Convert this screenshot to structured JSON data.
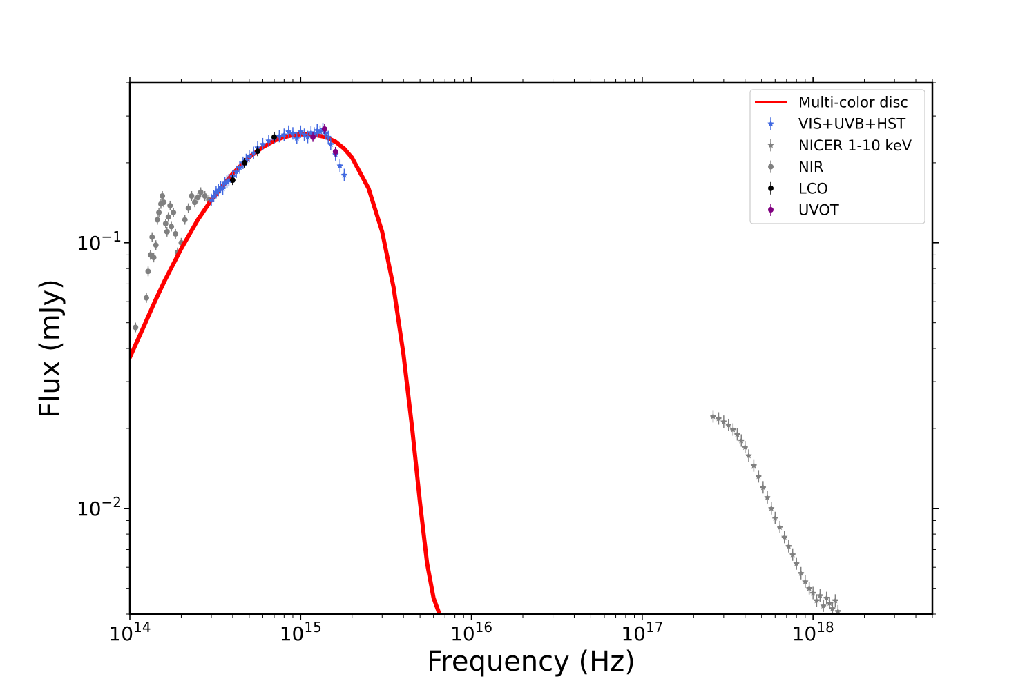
{
  "chart_data": {
    "type": "scatter",
    "title": "",
    "xlabel": "Frequency (Hz)",
    "ylabel": "Flux (mJy)",
    "xscale": "log",
    "yscale": "log",
    "xlim": [
      100000000000000.0,
      5e+18
    ],
    "ylim": [
      0.004,
      0.4
    ],
    "grid": false,
    "legend_position": "top-right",
    "x_ticks": [
      {
        "base": "10",
        "exp": "14",
        "value": 100000000000000.0
      },
      {
        "base": "10",
        "exp": "15",
        "value": 1000000000000000.0
      },
      {
        "base": "10",
        "exp": "16",
        "value": 1e+16
      },
      {
        "base": "10",
        "exp": "17",
        "value": 1e+17
      },
      {
        "base": "10",
        "exp": "18",
        "value": 1e+18
      }
    ],
    "y_ticks": [
      {
        "base": "10",
        "exp": "−1",
        "value": 0.1
      },
      {
        "base": "10",
        "exp": "−2",
        "value": 0.01
      }
    ],
    "series": [
      {
        "name": "Multi-color disc",
        "kind": "line",
        "color": "#ff0000",
        "x": [
          100000000000000.0,
          120000000000000.0,
          140000000000000.0,
          160000000000000.0,
          200000000000000.0,
          250000000000000.0,
          300000000000000.0,
          400000000000000.0,
          500000000000000.0,
          600000000000000.0,
          700000000000000.0,
          800000000000000.0,
          900000000000000.0,
          1000000000000000.0,
          1200000000000000.0,
          1400000000000000.0,
          1600000000000000.0,
          1800000000000000.0,
          2000000000000000.0,
          2500000000000000.0,
          3000000000000000.0,
          3500000000000000.0,
          4000000000000000.0,
          4500000000000000.0,
          5000000000000000.0,
          5500000000000000.0,
          6000000000000000.0,
          6500000000000000.0
        ],
        "y": [
          0.037,
          0.048,
          0.06,
          0.072,
          0.095,
          0.122,
          0.145,
          0.182,
          0.21,
          0.229,
          0.242,
          0.25,
          0.254,
          0.256,
          0.255,
          0.25,
          0.24,
          0.226,
          0.209,
          0.16,
          0.11,
          0.068,
          0.038,
          0.02,
          0.0105,
          0.0062,
          0.0046,
          0.004
        ]
      },
      {
        "name": "VIS+UVB+HST",
        "kind": "errorbar",
        "marker": "star",
        "color": "#4169e1",
        "x": [
          300000000000000.0,
          310000000000000.0,
          320000000000000.0,
          330000000000000.0,
          340000000000000.0,
          350000000000000.0,
          360000000000000.0,
          370000000000000.0,
          380000000000000.0,
          400000000000000.0,
          420000000000000.0,
          440000000000000.0,
          460000000000000.0,
          480000000000000.0,
          500000000000000.0,
          530000000000000.0,
          560000000000000.0,
          600000000000000.0,
          650000000000000.0,
          700000000000000.0,
          750000000000000.0,
          800000000000000.0,
          850000000000000.0,
          900000000000000.0,
          950000000000000.0,
          1000000000000000.0,
          1050000000000000.0,
          1100000000000000.0,
          1150000000000000.0,
          1200000000000000.0,
          1250000000000000.0,
          1300000000000000.0,
          1350000000000000.0,
          1400000000000000.0,
          1450000000000000.0,
          1500000000000000.0,
          1600000000000000.0,
          1700000000000000.0,
          1800000000000000.0
        ],
        "y": [
          0.145,
          0.15,
          0.155,
          0.158,
          0.162,
          0.16,
          0.168,
          0.17,
          0.172,
          0.178,
          0.185,
          0.192,
          0.2,
          0.205,
          0.212,
          0.218,
          0.228,
          0.235,
          0.242,
          0.248,
          0.252,
          0.255,
          0.262,
          0.258,
          0.248,
          0.262,
          0.255,
          0.25,
          0.26,
          0.258,
          0.265,
          0.262,
          0.268,
          0.258,
          0.25,
          0.235,
          0.215,
          0.195,
          0.18
        ]
      },
      {
        "name": "NICER 1-10 keV",
        "kind": "errorbar",
        "marker": "star",
        "color": "#808080",
        "x": [
          2.6e+17,
          2.8e+17,
          3e+17,
          3.2e+17,
          3.4e+17,
          3.6e+17,
          3.8e+17,
          4e+17,
          4.2e+17,
          4.5e+17,
          4.8e+17,
          5.1e+17,
          5.4e+17,
          5.7e+17,
          6e+17,
          6.4e+17,
          6.8e+17,
          7.2e+17,
          7.6e+17,
          8e+17,
          8.5e+17,
          9e+17,
          9.5e+17,
          1e+18,
          1.05e+18,
          1.1e+18,
          1.15e+18,
          1.2e+18,
          1.25e+18,
          1.3e+18,
          1.35e+18,
          1.4e+18
        ],
        "y": [
          0.0222,
          0.0218,
          0.0212,
          0.0206,
          0.0198,
          0.019,
          0.018,
          0.017,
          0.0158,
          0.0145,
          0.0132,
          0.012,
          0.011,
          0.01,
          0.0092,
          0.0085,
          0.0078,
          0.0072,
          0.0067,
          0.0062,
          0.0057,
          0.0053,
          0.005,
          0.0048,
          0.0045,
          0.0047,
          0.0043,
          0.0046,
          0.0044,
          0.0042,
          0.0045,
          0.0041
        ]
      },
      {
        "name": "NIR",
        "kind": "errorbar",
        "marker": "circle",
        "color": "#808080",
        "x": [
          108000000000000.0,
          125000000000000.0,
          128000000000000.0,
          132000000000000.0,
          135000000000000.0,
          138000000000000.0,
          142000000000000.0,
          145000000000000.0,
          148000000000000.0,
          152000000000000.0,
          155000000000000.0,
          158000000000000.0,
          162000000000000.0,
          165000000000000.0,
          168000000000000.0,
          172000000000000.0,
          175000000000000.0,
          180000000000000.0,
          185000000000000.0,
          190000000000000.0,
          200000000000000.0,
          210000000000000.0,
          220000000000000.0,
          230000000000000.0,
          240000000000000.0,
          250000000000000.0,
          260000000000000.0,
          275000000000000.0,
          290000000000000.0
        ],
        "y": [
          0.048,
          0.062,
          0.078,
          0.09,
          0.105,
          0.088,
          0.098,
          0.122,
          0.13,
          0.14,
          0.15,
          0.142,
          0.118,
          0.11,
          0.125,
          0.138,
          0.115,
          0.13,
          0.108,
          0.092,
          0.1,
          0.122,
          0.135,
          0.15,
          0.142,
          0.148,
          0.155,
          0.15,
          0.145
        ]
      },
      {
        "name": "LCO",
        "kind": "errorbar",
        "marker": "circle",
        "color": "#000000",
        "x": [
          400000000000000.0,
          470000000000000.0,
          560000000000000.0,
          700000000000000.0
        ],
        "y": [
          0.172,
          0.2,
          0.221,
          0.25
        ]
      },
      {
        "name": "UVOT",
        "kind": "errorbar",
        "marker": "circle",
        "color": "#800080",
        "x": [
          1180000000000000.0,
          1380000000000000.0,
          1600000000000000.0
        ],
        "y": [
          0.25,
          0.268,
          0.22
        ]
      }
    ]
  }
}
